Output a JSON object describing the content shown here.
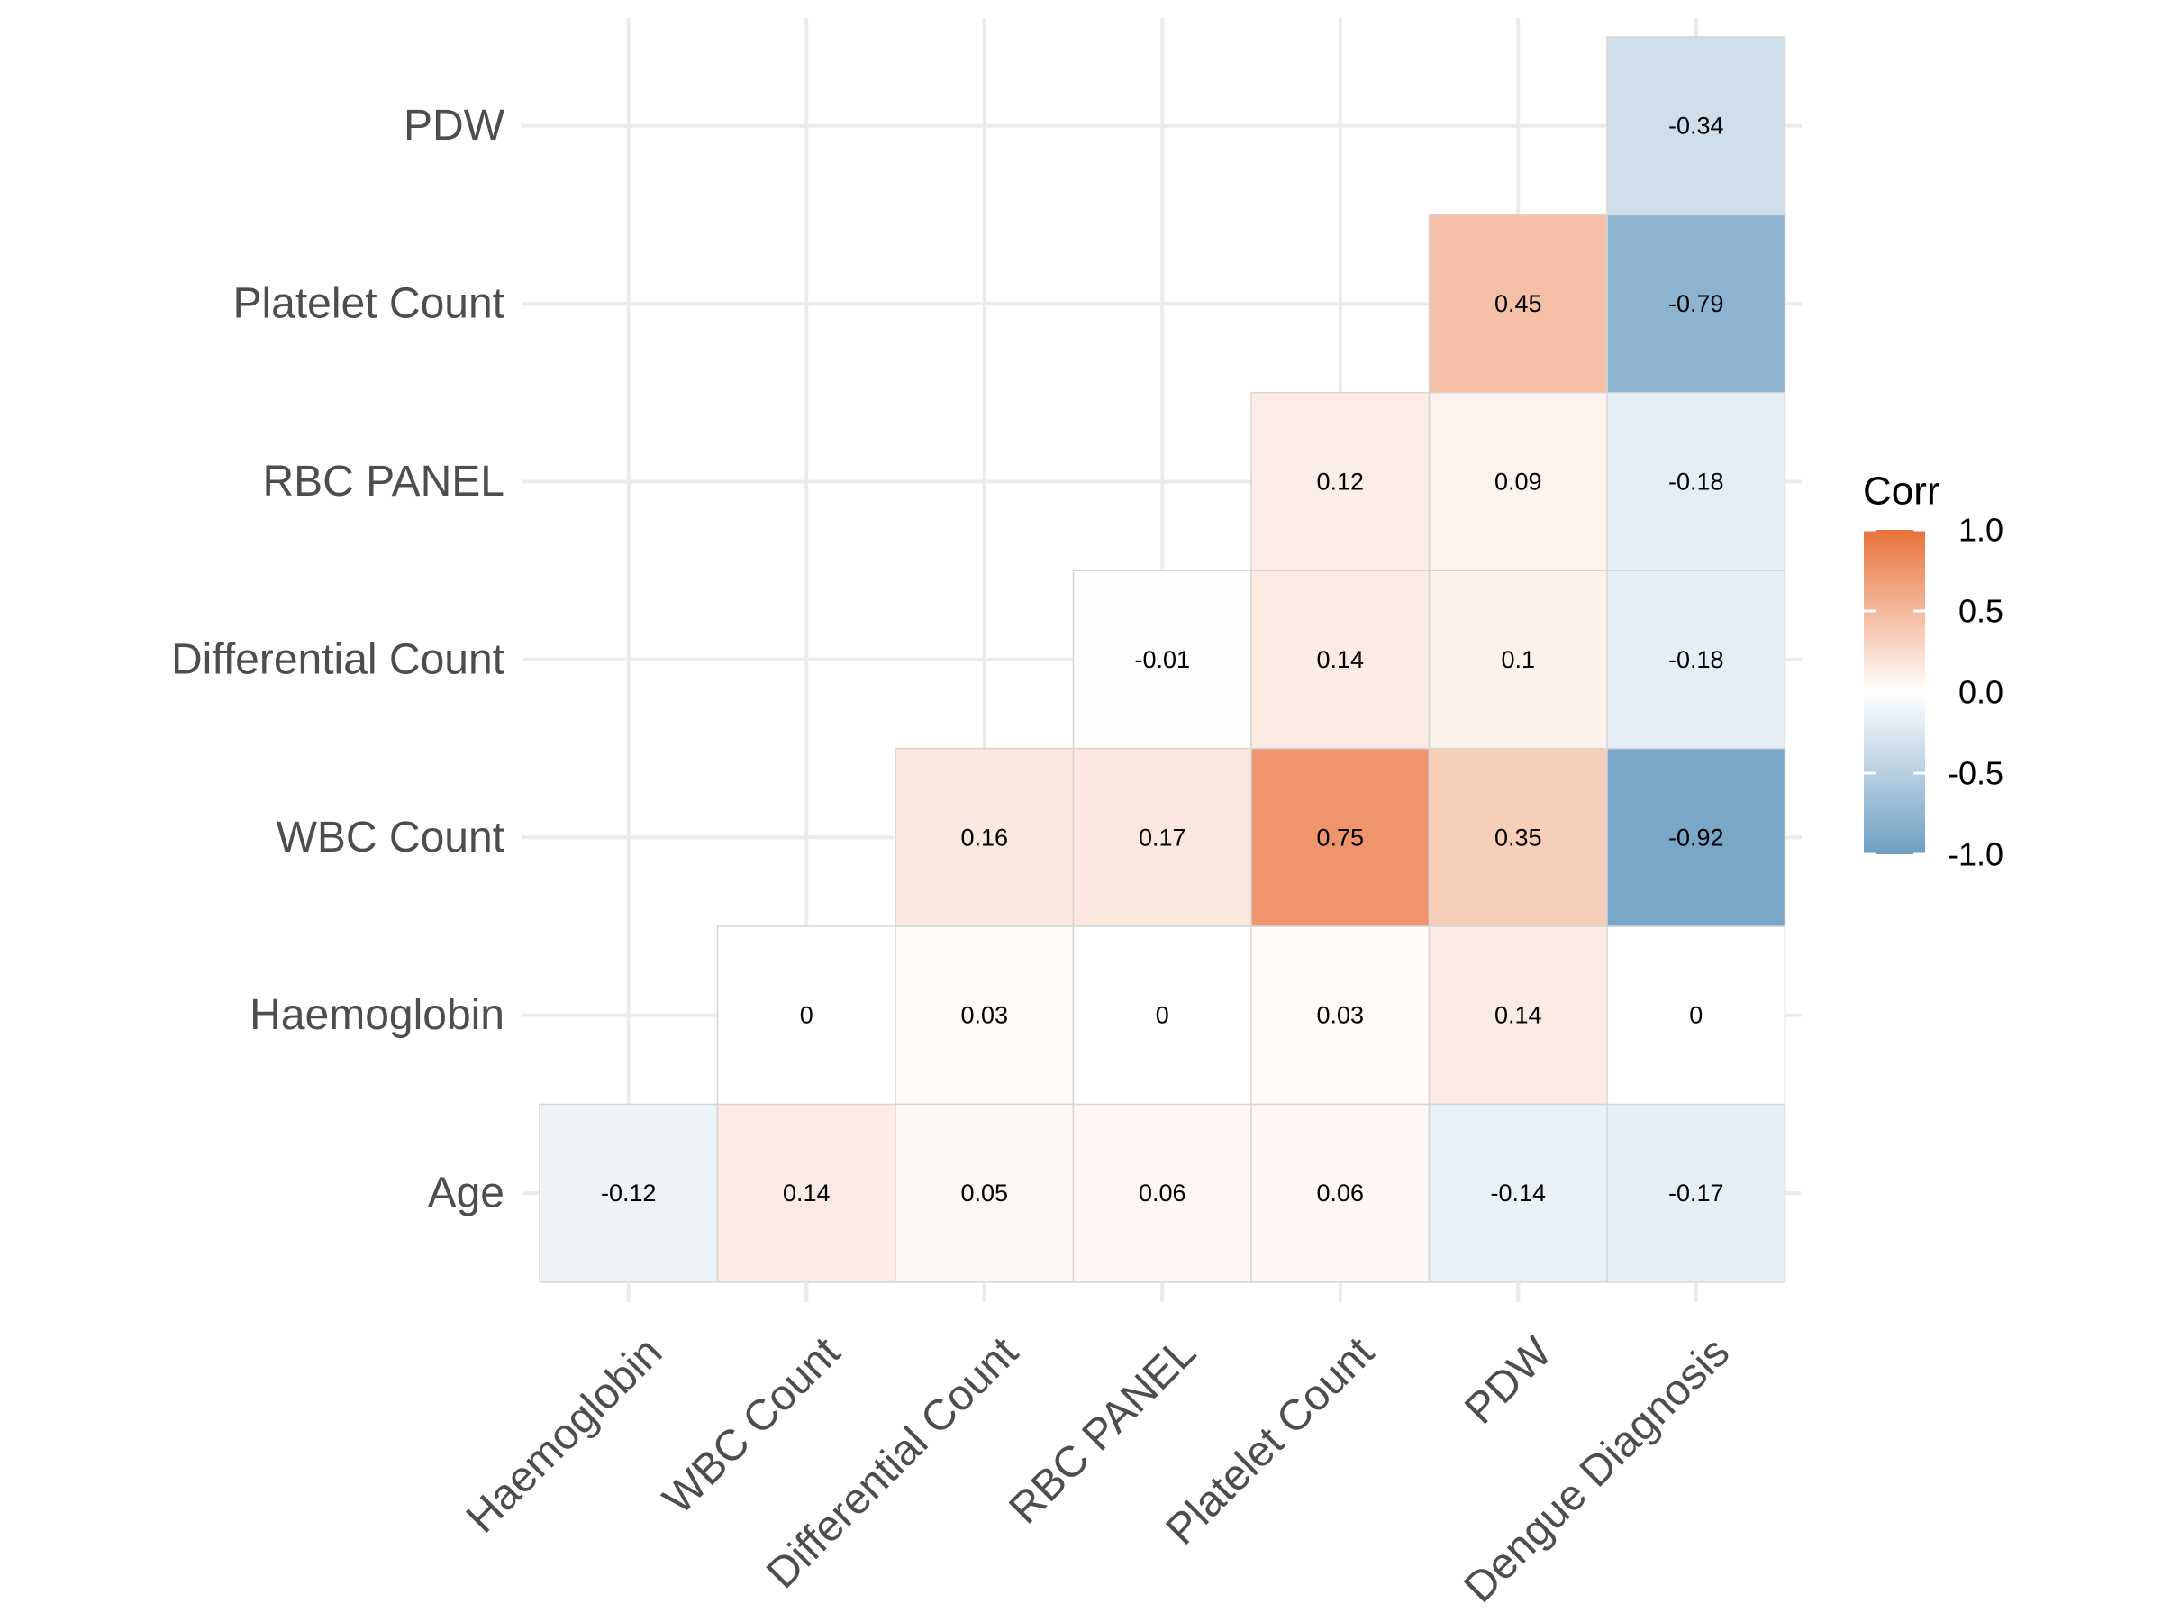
{
  "chart_data": {
    "type": "heatmap",
    "title": "",
    "xlabel": "",
    "ylabel": "",
    "x_categories": [
      "Haemoglobin",
      "WBC Count",
      "Differential Count",
      "RBC PANEL",
      "Platelet Count",
      "PDW",
      "Dengue Diagnosis"
    ],
    "y_categories": [
      "Age",
      "Haemoglobin",
      "WBC Count",
      "Differential Count",
      "RBC PANEL",
      "Platelet Count",
      "PDW"
    ],
    "cells": [
      {
        "x": "Haemoglobin",
        "y": "Age",
        "value": -0.12,
        "label": "-0.12"
      },
      {
        "x": "WBC Count",
        "y": "Age",
        "value": 0.14,
        "label": "0.14"
      },
      {
        "x": "Differential Count",
        "y": "Age",
        "value": 0.05,
        "label": "0.05"
      },
      {
        "x": "RBC PANEL",
        "y": "Age",
        "value": 0.06,
        "label": "0.06"
      },
      {
        "x": "Platelet Count",
        "y": "Age",
        "value": 0.06,
        "label": "0.06"
      },
      {
        "x": "PDW",
        "y": "Age",
        "value": -0.14,
        "label": "-0.14"
      },
      {
        "x": "Dengue Diagnosis",
        "y": "Age",
        "value": -0.17,
        "label": "-0.17"
      },
      {
        "x": "WBC Count",
        "y": "Haemoglobin",
        "value": 0,
        "label": "0"
      },
      {
        "x": "Differential Count",
        "y": "Haemoglobin",
        "value": 0.03,
        "label": "0.03"
      },
      {
        "x": "RBC PANEL",
        "y": "Haemoglobin",
        "value": 0,
        "label": "0"
      },
      {
        "x": "Platelet Count",
        "y": "Haemoglobin",
        "value": 0.03,
        "label": "0.03"
      },
      {
        "x": "PDW",
        "y": "Haemoglobin",
        "value": 0.14,
        "label": "0.14"
      },
      {
        "x": "Dengue Diagnosis",
        "y": "Haemoglobin",
        "value": 0,
        "label": "0"
      },
      {
        "x": "Differential Count",
        "y": "WBC Count",
        "value": 0.16,
        "label": "0.16"
      },
      {
        "x": "RBC PANEL",
        "y": "WBC Count",
        "value": 0.17,
        "label": "0.17"
      },
      {
        "x": "Platelet Count",
        "y": "WBC Count",
        "value": 0.75,
        "label": "0.75"
      },
      {
        "x": "PDW",
        "y": "WBC Count",
        "value": 0.35,
        "label": "0.35"
      },
      {
        "x": "Dengue Diagnosis",
        "y": "WBC Count",
        "value": -0.92,
        "label": "-0.92"
      },
      {
        "x": "RBC PANEL",
        "y": "Differential Count",
        "value": -0.01,
        "label": "-0.01"
      },
      {
        "x": "Platelet Count",
        "y": "Differential Count",
        "value": 0.14,
        "label": "0.14"
      },
      {
        "x": "PDW",
        "y": "Differential Count",
        "value": 0.1,
        "label": "0.1"
      },
      {
        "x": "Dengue Diagnosis",
        "y": "Differential Count",
        "value": -0.18,
        "label": "-0.18"
      },
      {
        "x": "Platelet Count",
        "y": "RBC PANEL",
        "value": 0.12,
        "label": "0.12"
      },
      {
        "x": "PDW",
        "y": "RBC PANEL",
        "value": 0.09,
        "label": "0.09"
      },
      {
        "x": "Dengue Diagnosis",
        "y": "RBC PANEL",
        "value": -0.18,
        "label": "-0.18"
      },
      {
        "x": "PDW",
        "y": "Platelet Count",
        "value": 0.45,
        "label": "0.45"
      },
      {
        "x": "Dengue Diagnosis",
        "y": "Platelet Count",
        "value": -0.79,
        "label": "-0.79"
      },
      {
        "x": "Dengue Diagnosis",
        "y": "PDW",
        "value": -0.34,
        "label": "-0.34"
      }
    ],
    "legend": {
      "title": "Corr",
      "range": [
        -1,
        1
      ],
      "ticks": [
        "1.0",
        "0.5",
        "0.0",
        "-0.5",
        "-1.0"
      ],
      "position": "right"
    },
    "colors": {
      "low": "#6E9FC3",
      "mid": "#FFFFFF",
      "high": "#E8723A"
    },
    "grid": true
  }
}
